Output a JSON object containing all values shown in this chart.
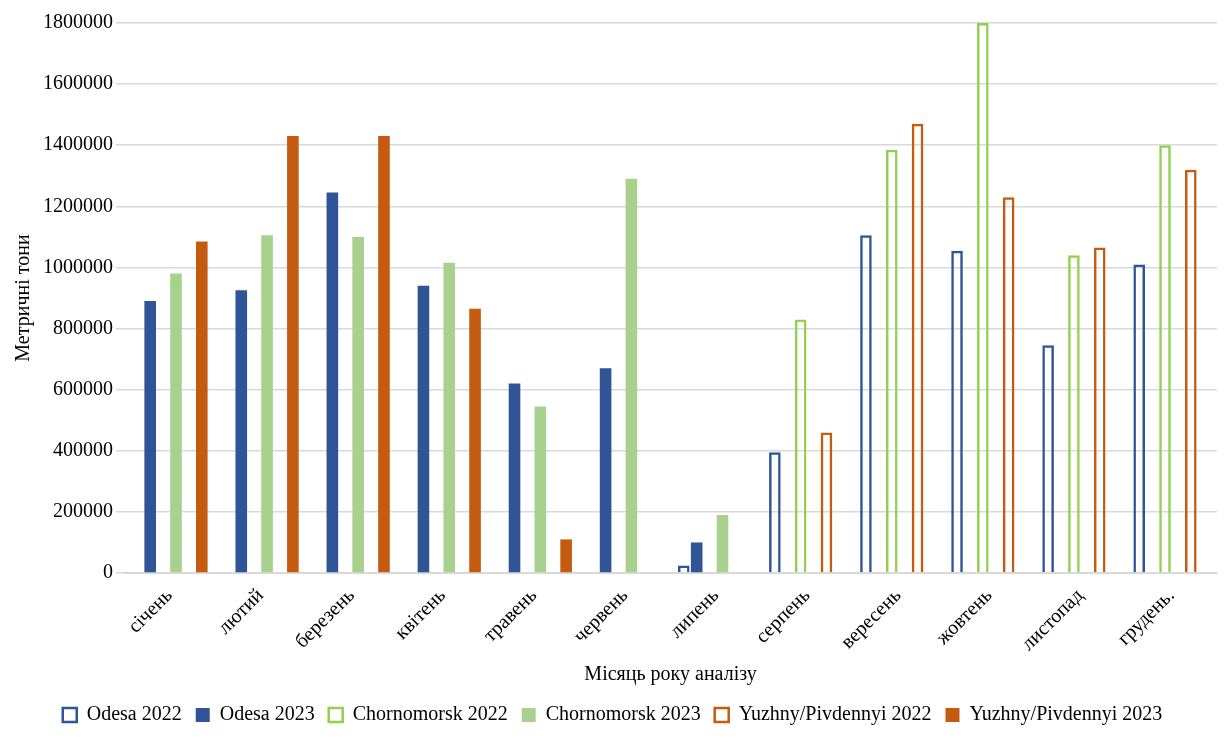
{
  "chart_data": {
    "type": "bar",
    "xlabel": "Місяць року аналізу",
    "ylabel": "Метричні тони",
    "categories": [
      "січень",
      "лютий",
      "березень",
      "квітень",
      "травень",
      "червень",
      "липень",
      "серпень",
      "вересень",
      "жовтень",
      "листопад",
      "грудень."
    ],
    "series": [
      {
        "name": "Odesa 2022",
        "color": "#2f5597",
        "line_style": "solid",
        "values": [
          null,
          null,
          null,
          null,
          null,
          null,
          25000,
          395000,
          1105000,
          1055000,
          745000,
          1010000
        ]
      },
      {
        "name": "Odesa 2023",
        "color": "#2f5597",
        "values": [
          890000,
          925000,
          1245000,
          940000,
          620000,
          670000,
          100000,
          null,
          null,
          null,
          null,
          null
        ]
      },
      {
        "name": "Chornomorsk 2022",
        "color": "#92d050",
        "line_style": "solid",
        "values": [
          null,
          null,
          null,
          null,
          null,
          null,
          null,
          830000,
          1385000,
          1800000,
          1040000,
          1400000
        ]
      },
      {
        "name": "Chornomorsk 2023",
        "color": "#a9d18e",
        "values": [
          980000,
          1105000,
          1100000,
          1015000,
          545000,
          1290000,
          190000,
          null,
          null,
          null,
          null,
          null
        ]
      },
      {
        "name": "Yuzhny/Pivdennyi 2022",
        "color": "#c55a11",
        "line_style": "solid",
        "values": [
          null,
          null,
          null,
          null,
          null,
          null,
          null,
          460000,
          1470000,
          1230000,
          1065000,
          1320000
        ]
      },
      {
        "name": "Yuzhny/Pivdennyi 2023",
        "color": "#c55a11",
        "values": [
          1085000,
          1430000,
          1430000,
          865000,
          110000,
          null,
          null,
          null,
          null,
          null,
          null,
          null
        ]
      }
    ],
    "ylim": [
      0,
      1800000
    ],
    "yticks": [
      0,
      200000,
      400000,
      600000,
      800000,
      1000000,
      1200000,
      1400000,
      1600000,
      1800000
    ],
    "grid": "y",
    "legend": "bottom"
  }
}
